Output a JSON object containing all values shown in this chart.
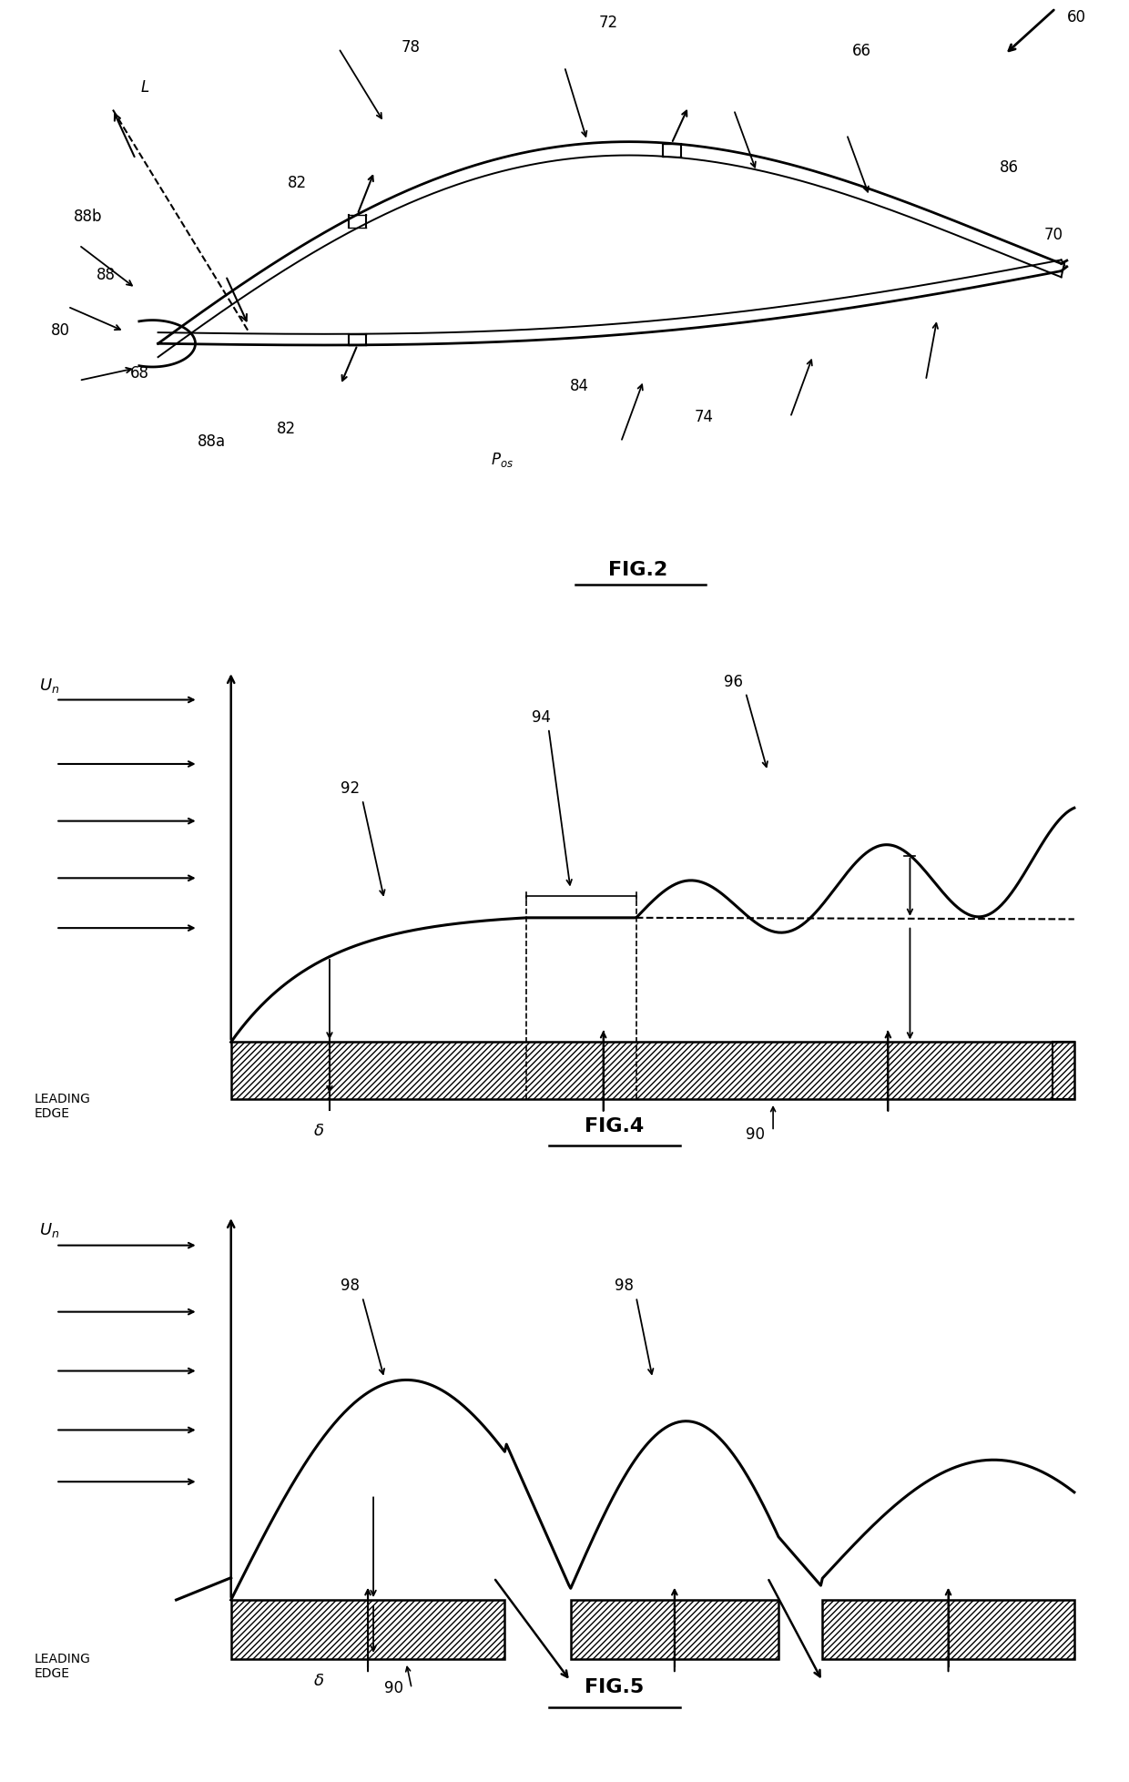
{
  "bg_color": "#ffffff",
  "line_color": "#000000",
  "fig2_title": "FIG.2",
  "fig4_title": "FIG.4",
  "fig5_title": "FIG.5"
}
